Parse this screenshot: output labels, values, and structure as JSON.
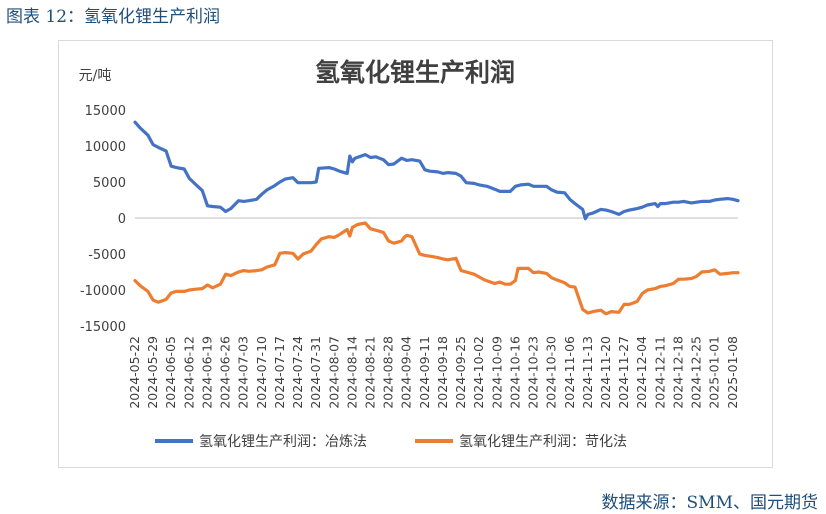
{
  "caption": "图表 12：氢氧化锂生产利润",
  "source": "数据来源：SMM、国元期货",
  "chart_data": {
    "type": "line",
    "title": "氢氧化锂生产利润",
    "ylabel": "元/吨",
    "xlabel": "",
    "ylim": [
      -15000,
      15000
    ],
    "yticks": [
      -15000,
      -10000,
      -5000,
      0,
      5000,
      10000,
      15000
    ],
    "x_tick_labels": [
      "2024-05-22",
      "2024-05-29",
      "2024-06-05",
      "2024-06-12",
      "2024-06-19",
      "2024-06-26",
      "2024-07-03",
      "2024-07-10",
      "2024-07-17",
      "2024-07-24",
      "2024-07-31",
      "2024-08-07",
      "2024-08-14",
      "2024-08-21",
      "2024-08-28",
      "2024-09-04",
      "2024-09-11",
      "2024-09-18",
      "2024-09-25",
      "2024-10-02",
      "2024-10-09",
      "2024-10-16",
      "2024-10-23",
      "2024-10-30",
      "2024-11-06",
      "2024-11-13",
      "2024-11-20",
      "2024-11-27",
      "2024-12-04",
      "2024-12-11",
      "2024-12-18",
      "2024-12-25",
      "2025-01-01",
      "2025-01-08"
    ],
    "x_end": "2025-01-10",
    "grid": false,
    "legend_position": "bottom",
    "series": [
      {
        "name": "氢氧化锂生产利润：冶炼法",
        "color": "#4472c4",
        "points": [
          [
            "2024-05-22",
            13300
          ],
          [
            "2024-05-24",
            12500
          ],
          [
            "2024-05-27",
            11500
          ],
          [
            "2024-05-29",
            10200
          ],
          [
            "2024-05-31",
            9800
          ],
          [
            "2024-06-03",
            9300
          ],
          [
            "2024-06-05",
            7200
          ],
          [
            "2024-06-07",
            7000
          ],
          [
            "2024-06-10",
            6800
          ],
          [
            "2024-06-12",
            5500
          ],
          [
            "2024-06-14",
            4800
          ],
          [
            "2024-06-17",
            3800
          ],
          [
            "2024-06-19",
            1700
          ],
          [
            "2024-06-21",
            1600
          ],
          [
            "2024-06-24",
            1500
          ],
          [
            "2024-06-26",
            900
          ],
          [
            "2024-06-28",
            1300
          ],
          [
            "2024-07-01",
            2400
          ],
          [
            "2024-07-03",
            2300
          ],
          [
            "2024-07-05",
            2400
          ],
          [
            "2024-07-08",
            2600
          ],
          [
            "2024-07-10",
            3300
          ],
          [
            "2024-07-12",
            3900
          ],
          [
            "2024-07-15",
            4500
          ],
          [
            "2024-07-17",
            5000
          ],
          [
            "2024-07-19",
            5400
          ],
          [
            "2024-07-22",
            5600
          ],
          [
            "2024-07-24",
            4900
          ],
          [
            "2024-07-26",
            4900
          ],
          [
            "2024-07-29",
            4900
          ],
          [
            "2024-07-31",
            5000
          ],
          [
            "2024-08-01",
            6900
          ],
          [
            "2024-08-05",
            7000
          ],
          [
            "2024-08-07",
            6800
          ],
          [
            "2024-08-09",
            6500
          ],
          [
            "2024-08-12",
            6200
          ],
          [
            "2024-08-13",
            8600
          ],
          [
            "2024-08-14",
            7800
          ],
          [
            "2024-08-15",
            8300
          ],
          [
            "2024-08-19",
            8800
          ],
          [
            "2024-08-21",
            8400
          ],
          [
            "2024-08-23",
            8500
          ],
          [
            "2024-08-26",
            8100
          ],
          [
            "2024-08-28",
            7400
          ],
          [
            "2024-08-30",
            7500
          ],
          [
            "2024-09-02",
            8300
          ],
          [
            "2024-09-04",
            8000
          ],
          [
            "2024-09-06",
            8100
          ],
          [
            "2024-09-09",
            7900
          ],
          [
            "2024-09-11",
            6700
          ],
          [
            "2024-09-13",
            6500
          ],
          [
            "2024-09-16",
            6400
          ],
          [
            "2024-09-18",
            6200
          ],
          [
            "2024-09-20",
            6300
          ],
          [
            "2024-09-23",
            6200
          ],
          [
            "2024-09-25",
            5800
          ],
          [
            "2024-09-27",
            4900
          ],
          [
            "2024-09-30",
            4800
          ],
          [
            "2024-10-02",
            4600
          ],
          [
            "2024-10-05",
            4400
          ],
          [
            "2024-10-08",
            4000
          ],
          [
            "2024-10-10",
            3700
          ],
          [
            "2024-10-14",
            3700
          ],
          [
            "2024-10-16",
            4400
          ],
          [
            "2024-10-18",
            4600
          ],
          [
            "2024-10-21",
            4700
          ],
          [
            "2024-10-23",
            4400
          ],
          [
            "2024-10-25",
            4400
          ],
          [
            "2024-10-28",
            4400
          ],
          [
            "2024-10-30",
            3900
          ],
          [
            "2024-11-01",
            3600
          ],
          [
            "2024-11-04",
            3500
          ],
          [
            "2024-11-06",
            2600
          ],
          [
            "2024-11-08",
            2000
          ],
          [
            "2024-11-11",
            1200
          ],
          [
            "2024-11-12",
            -100
          ],
          [
            "2024-11-13",
            500
          ],
          [
            "2024-11-15",
            700
          ],
          [
            "2024-11-18",
            1200
          ],
          [
            "2024-11-20",
            1100
          ],
          [
            "2024-11-22",
            900
          ],
          [
            "2024-11-25",
            500
          ],
          [
            "2024-11-27",
            900
          ],
          [
            "2024-11-29",
            1100
          ],
          [
            "2024-12-02",
            1300
          ],
          [
            "2024-12-04",
            1500
          ],
          [
            "2024-12-06",
            1800
          ],
          [
            "2024-12-09",
            2000
          ],
          [
            "2024-12-10",
            1600
          ],
          [
            "2024-12-11",
            2000
          ],
          [
            "2024-12-13",
            2000
          ],
          [
            "2024-12-16",
            2200
          ],
          [
            "2024-12-18",
            2200
          ],
          [
            "2024-12-20",
            2300
          ],
          [
            "2024-12-23",
            2100
          ],
          [
            "2024-12-25",
            2200
          ],
          [
            "2024-12-27",
            2300
          ],
          [
            "2024-12-30",
            2300
          ],
          [
            "2025-01-01",
            2500
          ],
          [
            "2025-01-03",
            2600
          ],
          [
            "2025-01-06",
            2700
          ],
          [
            "2025-01-08",
            2600
          ],
          [
            "2025-01-10",
            2400
          ]
        ]
      },
      {
        "name": "氢氧化锂生产利润：苛化法",
        "color": "#ed7d31",
        "points": [
          [
            "2024-05-22",
            -8700
          ],
          [
            "2024-05-24",
            -9400
          ],
          [
            "2024-05-27",
            -10200
          ],
          [
            "2024-05-29",
            -11400
          ],
          [
            "2024-05-31",
            -11700
          ],
          [
            "2024-06-03",
            -11300
          ],
          [
            "2024-06-05",
            -10400
          ],
          [
            "2024-06-07",
            -10200
          ],
          [
            "2024-06-10",
            -10200
          ],
          [
            "2024-06-12",
            -10000
          ],
          [
            "2024-06-14",
            -9900
          ],
          [
            "2024-06-17",
            -9800
          ],
          [
            "2024-06-19",
            -9300
          ],
          [
            "2024-06-21",
            -9700
          ],
          [
            "2024-06-24",
            -9200
          ],
          [
            "2024-06-26",
            -7800
          ],
          [
            "2024-06-28",
            -8000
          ],
          [
            "2024-07-01",
            -7500
          ],
          [
            "2024-07-03",
            -7300
          ],
          [
            "2024-07-05",
            -7400
          ],
          [
            "2024-07-08",
            -7300
          ],
          [
            "2024-07-10",
            -7200
          ],
          [
            "2024-07-12",
            -6800
          ],
          [
            "2024-07-15",
            -6500
          ],
          [
            "2024-07-17",
            -4900
          ],
          [
            "2024-07-19",
            -4800
          ],
          [
            "2024-07-22",
            -4900
          ],
          [
            "2024-07-24",
            -5700
          ],
          [
            "2024-07-26",
            -5000
          ],
          [
            "2024-07-29",
            -4600
          ],
          [
            "2024-07-31",
            -3700
          ],
          [
            "2024-08-02",
            -2900
          ],
          [
            "2024-08-05",
            -2600
          ],
          [
            "2024-08-07",
            -2700
          ],
          [
            "2024-08-09",
            -2300
          ],
          [
            "2024-08-12",
            -1600
          ],
          [
            "2024-08-13",
            -2500
          ],
          [
            "2024-08-14",
            -1300
          ],
          [
            "2024-08-16",
            -900
          ],
          [
            "2024-08-19",
            -700
          ],
          [
            "2024-08-21",
            -1500
          ],
          [
            "2024-08-23",
            -1700
          ],
          [
            "2024-08-26",
            -2000
          ],
          [
            "2024-08-28",
            -3200
          ],
          [
            "2024-08-30",
            -3500
          ],
          [
            "2024-09-02",
            -3200
          ],
          [
            "2024-09-03",
            -2700
          ],
          [
            "2024-09-04",
            -2400
          ],
          [
            "2024-09-06",
            -2600
          ],
          [
            "2024-09-09",
            -5000
          ],
          [
            "2024-09-11",
            -5200
          ],
          [
            "2024-09-13",
            -5300
          ],
          [
            "2024-09-16",
            -5500
          ],
          [
            "2024-09-18",
            -5700
          ],
          [
            "2024-09-20",
            -5800
          ],
          [
            "2024-09-23",
            -5600
          ],
          [
            "2024-09-25",
            -7300
          ],
          [
            "2024-09-27",
            -7500
          ],
          [
            "2024-09-30",
            -7800
          ],
          [
            "2024-10-02",
            -8200
          ],
          [
            "2024-10-04",
            -8600
          ],
          [
            "2024-10-08",
            -9100
          ],
          [
            "2024-10-10",
            -8900
          ],
          [
            "2024-10-12",
            -9200
          ],
          [
            "2024-10-14",
            -9200
          ],
          [
            "2024-10-16",
            -8700
          ],
          [
            "2024-10-17",
            -7000
          ],
          [
            "2024-10-21",
            -7000
          ],
          [
            "2024-10-23",
            -7600
          ],
          [
            "2024-10-25",
            -7500
          ],
          [
            "2024-10-28",
            -7700
          ],
          [
            "2024-10-30",
            -8300
          ],
          [
            "2024-11-01",
            -8600
          ],
          [
            "2024-11-04",
            -9000
          ],
          [
            "2024-11-06",
            -9500
          ],
          [
            "2024-11-08",
            -9600
          ],
          [
            "2024-11-11",
            -12700
          ],
          [
            "2024-11-13",
            -13200
          ],
          [
            "2024-11-15",
            -13000
          ],
          [
            "2024-11-18",
            -12800
          ],
          [
            "2024-11-20",
            -13300
          ],
          [
            "2024-11-22",
            -13000
          ],
          [
            "2024-11-25",
            -13100
          ],
          [
            "2024-11-27",
            -12000
          ],
          [
            "2024-11-29",
            -12000
          ],
          [
            "2024-12-02",
            -11600
          ],
          [
            "2024-12-04",
            -10500
          ],
          [
            "2024-12-06",
            -10000
          ],
          [
            "2024-12-09",
            -9800
          ],
          [
            "2024-12-11",
            -9500
          ],
          [
            "2024-12-13",
            -9400
          ],
          [
            "2024-12-16",
            -9100
          ],
          [
            "2024-12-18",
            -8500
          ],
          [
            "2024-12-20",
            -8500
          ],
          [
            "2024-12-23",
            -8400
          ],
          [
            "2024-12-25",
            -8100
          ],
          [
            "2024-12-27",
            -7500
          ],
          [
            "2024-12-30",
            -7400
          ],
          [
            "2025-01-01",
            -7200
          ],
          [
            "2025-01-03",
            -7800
          ],
          [
            "2025-01-06",
            -7700
          ],
          [
            "2025-01-08",
            -7600
          ],
          [
            "2025-01-10",
            -7600
          ]
        ]
      }
    ]
  }
}
